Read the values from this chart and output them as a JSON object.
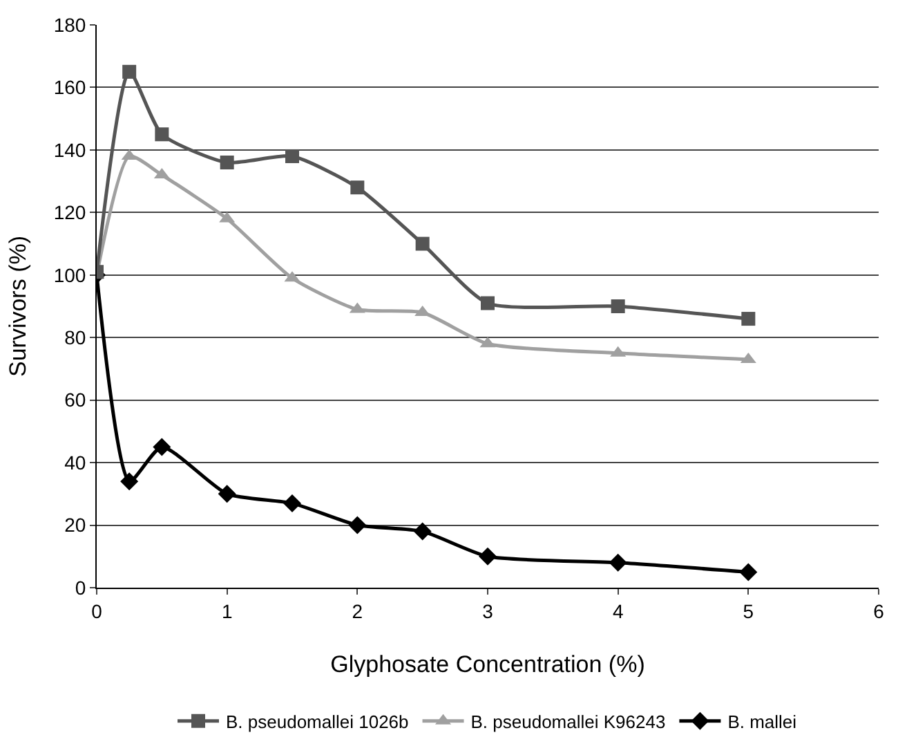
{
  "chart_data": {
    "type": "line",
    "xlabel": "Glyphosate Concentration (%)",
    "ylabel": "Survivors (%)",
    "x": [
      0,
      0.25,
      0.5,
      1,
      1.5,
      2,
      2.5,
      3,
      4,
      5
    ],
    "series": [
      {
        "name": "B. pseudomallei 1026b",
        "color": "#555555",
        "marker": "square",
        "values": [
          101,
          165,
          145,
          136,
          138,
          128,
          110,
          91,
          90,
          86
        ]
      },
      {
        "name": "B. pseudomallei K96243",
        "color": "#a0a0a0",
        "marker": "triangle",
        "values": [
          100,
          138,
          132,
          118,
          99,
          89,
          88,
          78,
          75,
          73
        ]
      },
      {
        "name": "B. mallei",
        "color": "#000000",
        "marker": "diamond",
        "values": [
          100,
          34,
          45,
          30,
          27,
          20,
          18,
          10,
          8,
          5
        ]
      }
    ],
    "xlim": [
      0,
      6
    ],
    "xticks": [
      0,
      1,
      2,
      3,
      4,
      5,
      6
    ],
    "ylim": [
      0,
      180
    ],
    "yticks": [
      0,
      20,
      40,
      60,
      80,
      100,
      120,
      140,
      160,
      180
    ],
    "grid": "y",
    "legend": "bottom"
  }
}
